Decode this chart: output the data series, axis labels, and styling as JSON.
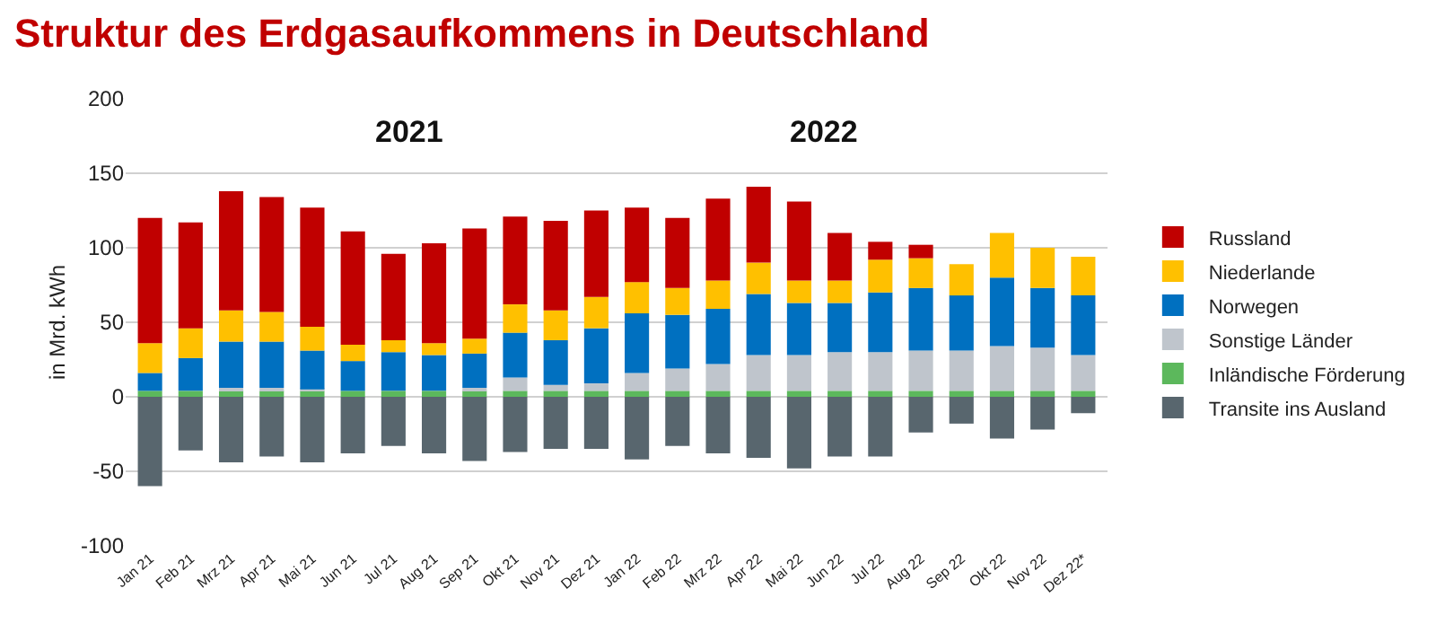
{
  "chart_data": {
    "type": "bar",
    "stacked": true,
    "title": "Struktur des Erdgasaufkommens in Deutschland",
    "ylabel": "in Mrd. kWh",
    "categories": [
      "Jan 21",
      "Feb 21",
      "Mrz 21",
      "Apr 21",
      "Mai 21",
      "Jun 21",
      "Jul 21",
      "Aug 21",
      "Sep 21",
      "Okt 21",
      "Nov 21",
      "Dez 21",
      "Jan 22",
      "Feb 22",
      "Mrz 22",
      "Apr 22",
      "Mai 22",
      "Jun 22",
      "Jul 22",
      "Aug 22",
      "Sep 22",
      "Okt 22",
      "Nov 22",
      "Dez 22*"
    ],
    "series": [
      {
        "name": "Transite ins Ausland",
        "color": "#58666e",
        "values": [
          -60,
          -36,
          -44,
          -40,
          -44,
          -38,
          -33,
          -38,
          -43,
          -37,
          -35,
          -35,
          -42,
          -33,
          -38,
          -41,
          -48,
          -40,
          -40,
          -24,
          -18,
          -28,
          -22,
          -11
        ]
      },
      {
        "name": "Inländische Förderung",
        "color": "#5cb85c",
        "values": [
          4,
          4,
          4,
          4,
          4,
          4,
          4,
          4,
          4,
          4,
          4,
          4,
          4,
          4,
          4,
          4,
          4,
          4,
          4,
          4,
          4,
          4,
          4,
          4
        ]
      },
      {
        "name": "Sonstige Länder",
        "color": "#bfc5cc",
        "values": [
          null,
          null,
          2,
          2,
          1,
          null,
          null,
          null,
          2,
          9,
          4,
          5,
          12,
          15,
          18,
          24,
          24,
          26,
          26,
          27,
          27,
          30,
          29,
          24
        ]
      },
      {
        "name": "Norwegen",
        "color": "#0070c0",
        "values": [
          12,
          22,
          31,
          31,
          26,
          20,
          26,
          24,
          23,
          30,
          30,
          37,
          40,
          36,
          37,
          41,
          35,
          33,
          40,
          42,
          37,
          46,
          40,
          40
        ]
      },
      {
        "name": "Niederlande",
        "color": "#ffc000",
        "values": [
          20,
          20,
          21,
          20,
          16,
          11,
          8,
          8,
          10,
          19,
          20,
          21,
          21,
          18,
          19,
          21,
          15,
          15,
          22,
          20,
          21,
          30,
          27,
          26
        ]
      },
      {
        "name": "Russland",
        "color": "#c00000",
        "values": [
          84,
          71,
          80,
          77,
          80,
          76,
          58,
          67,
          74,
          59,
          60,
          58,
          50,
          47,
          55,
          51,
          53,
          32,
          12,
          9,
          0,
          0,
          0,
          0
        ]
      }
    ],
    "ylim": [
      -100,
      200
    ],
    "yticks": [
      -100,
      -50,
      0,
      50,
      100,
      150,
      200
    ],
    "grid": "y",
    "legend": "right",
    "annotations": [
      "2021",
      "2022"
    ]
  }
}
